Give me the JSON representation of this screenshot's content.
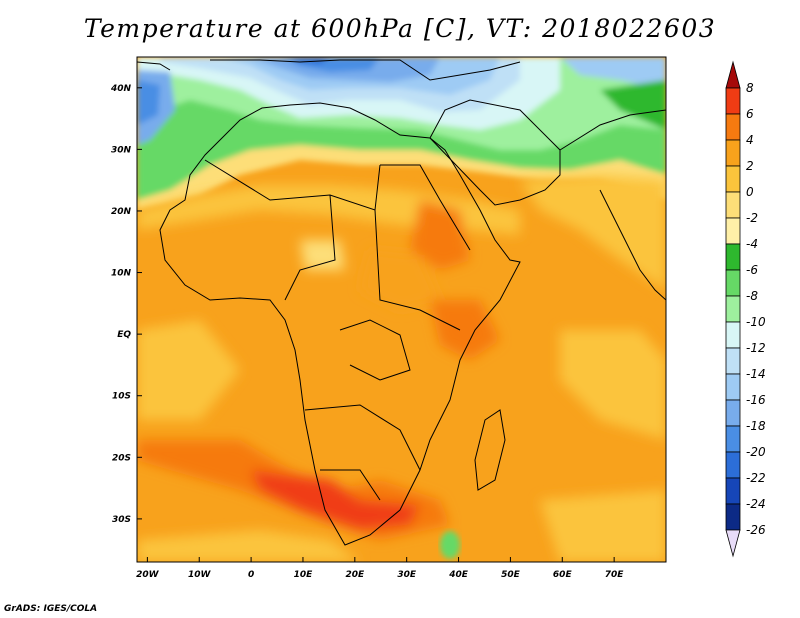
{
  "title": "Temperature at 600hPa [C], VT: 2018022603",
  "footer": "GrADS: IGES/COLA",
  "map": {
    "extent": {
      "lon": [
        -22,
        80
      ],
      "lat": [
        -37,
        45
      ]
    },
    "lat_ticks": [
      {
        "label": "40N",
        "lat": 40
      },
      {
        "label": "30N",
        "lat": 30
      },
      {
        "label": "20N",
        "lat": 20
      },
      {
        "label": "10N",
        "lat": 10
      },
      {
        "label": "EQ",
        "lat": 0
      },
      {
        "label": "10S",
        "lat": -10
      },
      {
        "label": "20S",
        "lat": -20
      },
      {
        "label": "30S",
        "lat": -30
      }
    ],
    "lon_ticks": [
      {
        "label": "20W",
        "lon": -20
      },
      {
        "label": "10W",
        "lon": -10
      },
      {
        "label": "0",
        "lon": 0
      },
      {
        "label": "10E",
        "lon": 10
      },
      {
        "label": "20E",
        "lon": 20
      },
      {
        "label": "30E",
        "lon": 30
      },
      {
        "label": "40E",
        "lon": 40
      },
      {
        "label": "50E",
        "lon": 50
      },
      {
        "label": "60E",
        "lon": 60
      },
      {
        "label": "70E",
        "lon": 70
      }
    ]
  },
  "colorbar": {
    "labels": [
      "8",
      "6",
      "4",
      "2",
      "0",
      "-2",
      "-4",
      "-6",
      "-8",
      "-10",
      "-12",
      "-14",
      "-16",
      "-18",
      "-20",
      "-22",
      "-24",
      "-26"
    ],
    "colors": [
      "#a50a0a",
      "#f03c14",
      "#f67a10",
      "#f8a21c",
      "#fbc43c",
      "#fdde78",
      "#fff0a8",
      "#2eb82e",
      "#66d966",
      "#9ef09e",
      "#d8f6f6",
      "#bfe0f6",
      "#9ecbf4",
      "#78acec",
      "#4a8ee4",
      "#2c6ed8",
      "#1646b8",
      "#0c2a86",
      "#e8dcf8"
    ]
  }
}
